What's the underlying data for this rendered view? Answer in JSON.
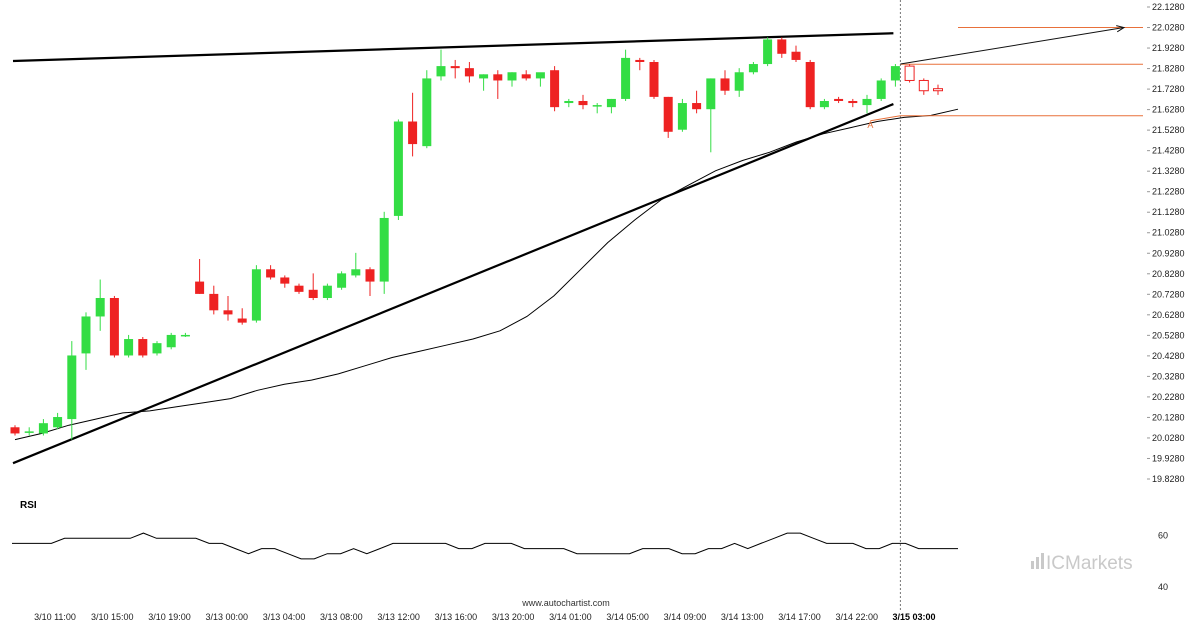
{
  "chart_data": {
    "type": "candlestick",
    "watermark": "www.autochartist.com",
    "brand": "ICMarkets",
    "colors": {
      "up": "#33dd44",
      "down": "#ee2222",
      "trendline": "#000000",
      "level": "#e8703a",
      "ma": "#000000"
    },
    "price_axis": {
      "ticks": [
        "22.1280",
        "22.0280",
        "21.9280",
        "21.8280",
        "21.7280",
        "21.6280",
        "21.5280",
        "21.4280",
        "21.3280",
        "21.2280",
        "21.1280",
        "21.0280",
        "20.9280",
        "20.8280",
        "20.7280",
        "20.6280",
        "20.5280",
        "20.4280",
        "20.3280",
        "20.2280",
        "20.1280",
        "20.0280",
        "19.9280",
        "19.8280"
      ],
      "range": [
        19.828,
        22.128
      ]
    },
    "time_axis": {
      "labels": [
        "3/10 11:00",
        "3/10 15:00",
        "3/10 19:00",
        "3/13 00:00",
        "3/13 04:00",
        "3/13 08:00",
        "3/13 12:00",
        "3/13 16:00",
        "3/13 20:00",
        "3/14 01:00",
        "3/14 05:00",
        "3/14 09:00",
        "3/14 13:00",
        "3/14 17:00",
        "3/14 22:00",
        "3/15 03:00"
      ],
      "highlighted": "3/15 03:00"
    },
    "candles": [
      {
        "o": 20.08,
        "h": 20.09,
        "l": 20.04,
        "c": 20.05
      },
      {
        "o": 20.06,
        "h": 20.08,
        "l": 20.04,
        "c": 20.06
      },
      {
        "o": 20.05,
        "h": 20.12,
        "l": 20.04,
        "c": 20.1
      },
      {
        "o": 20.08,
        "h": 20.15,
        "l": 20.07,
        "c": 20.13
      },
      {
        "o": 20.12,
        "h": 20.5,
        "l": 20.02,
        "c": 20.43
      },
      {
        "o": 20.44,
        "h": 20.64,
        "l": 20.36,
        "c": 20.62
      },
      {
        "o": 20.62,
        "h": 20.8,
        "l": 20.55,
        "c": 20.71
      },
      {
        "o": 20.71,
        "h": 20.72,
        "l": 20.42,
        "c": 20.43
      },
      {
        "o": 20.43,
        "h": 20.53,
        "l": 20.42,
        "c": 20.51
      },
      {
        "o": 20.51,
        "h": 20.52,
        "l": 20.42,
        "c": 20.43
      },
      {
        "o": 20.44,
        "h": 20.5,
        "l": 20.43,
        "c": 20.49
      },
      {
        "o": 20.47,
        "h": 20.54,
        "l": 20.46,
        "c": 20.53
      },
      {
        "o": 20.53,
        "h": 20.54,
        "l": 20.52,
        "c": 20.53
      },
      {
        "o": 20.79,
        "h": 20.9,
        "l": 20.73,
        "c": 20.73
      },
      {
        "o": 20.73,
        "h": 20.77,
        "l": 20.63,
        "c": 20.65
      },
      {
        "o": 20.65,
        "h": 20.72,
        "l": 20.6,
        "c": 20.63
      },
      {
        "o": 20.61,
        "h": 20.66,
        "l": 20.58,
        "c": 20.59
      },
      {
        "o": 20.6,
        "h": 20.87,
        "l": 20.59,
        "c": 20.85
      },
      {
        "o": 20.85,
        "h": 20.87,
        "l": 20.8,
        "c": 20.81
      },
      {
        "o": 20.81,
        "h": 20.82,
        "l": 20.76,
        "c": 20.78
      },
      {
        "o": 20.77,
        "h": 20.78,
        "l": 20.73,
        "c": 20.74
      },
      {
        "o": 20.75,
        "h": 20.83,
        "l": 20.7,
        "c": 20.71
      },
      {
        "o": 20.71,
        "h": 20.78,
        "l": 20.7,
        "c": 20.77
      },
      {
        "o": 20.76,
        "h": 20.84,
        "l": 20.75,
        "c": 20.83
      },
      {
        "o": 20.82,
        "h": 20.93,
        "l": 20.81,
        "c": 20.85
      },
      {
        "o": 20.85,
        "h": 20.86,
        "l": 20.72,
        "c": 20.79
      },
      {
        "o": 20.79,
        "h": 21.13,
        "l": 20.73,
        "c": 21.1
      },
      {
        "o": 21.11,
        "h": 21.58,
        "l": 21.09,
        "c": 21.57
      },
      {
        "o": 21.57,
        "h": 21.71,
        "l": 21.4,
        "c": 21.46
      },
      {
        "o": 21.45,
        "h": 21.82,
        "l": 21.44,
        "c": 21.78
      },
      {
        "o": 21.79,
        "h": 21.92,
        "l": 21.77,
        "c": 21.84
      },
      {
        "o": 21.84,
        "h": 21.87,
        "l": 21.78,
        "c": 21.83
      },
      {
        "o": 21.83,
        "h": 21.86,
        "l": 21.76,
        "c": 21.79
      },
      {
        "o": 21.78,
        "h": 21.8,
        "l": 21.72,
        "c": 21.8
      },
      {
        "o": 21.8,
        "h": 21.82,
        "l": 21.68,
        "c": 21.77
      },
      {
        "o": 21.77,
        "h": 21.81,
        "l": 21.74,
        "c": 21.81
      },
      {
        "o": 21.8,
        "h": 21.82,
        "l": 21.77,
        "c": 21.78
      },
      {
        "o": 21.78,
        "h": 21.8,
        "l": 21.74,
        "c": 21.81
      },
      {
        "o": 21.82,
        "h": 21.84,
        "l": 21.62,
        "c": 21.64
      },
      {
        "o": 21.66,
        "h": 21.68,
        "l": 21.64,
        "c": 21.67
      },
      {
        "o": 21.67,
        "h": 21.7,
        "l": 21.63,
        "c": 21.65
      },
      {
        "o": 21.65,
        "h": 21.66,
        "l": 21.61,
        "c": 21.65
      },
      {
        "o": 21.64,
        "h": 21.68,
        "l": 21.61,
        "c": 21.68
      },
      {
        "o": 21.68,
        "h": 21.92,
        "l": 21.67,
        "c": 21.88
      },
      {
        "o": 21.87,
        "h": 21.88,
        "l": 21.82,
        "c": 21.86
      },
      {
        "o": 21.86,
        "h": 21.87,
        "l": 21.68,
        "c": 21.69
      },
      {
        "o": 21.69,
        "h": 21.69,
        "l": 21.49,
        "c": 21.52
      },
      {
        "o": 21.53,
        "h": 21.68,
        "l": 21.52,
        "c": 21.66
      },
      {
        "o": 21.66,
        "h": 21.72,
        "l": 21.61,
        "c": 21.63
      },
      {
        "o": 21.63,
        "h": 21.78,
        "l": 21.42,
        "c": 21.78
      },
      {
        "o": 21.78,
        "h": 21.82,
        "l": 21.7,
        "c": 21.72
      },
      {
        "o": 21.72,
        "h": 21.83,
        "l": 21.69,
        "c": 21.81
      },
      {
        "o": 21.81,
        "h": 21.86,
        "l": 21.8,
        "c": 21.85
      },
      {
        "o": 21.85,
        "h": 21.98,
        "l": 21.84,
        "c": 21.97
      },
      {
        "o": 21.97,
        "h": 21.98,
        "l": 21.88,
        "c": 21.9
      },
      {
        "o": 21.91,
        "h": 21.94,
        "l": 21.86,
        "c": 21.87
      },
      {
        "o": 21.86,
        "h": 21.87,
        "l": 21.63,
        "c": 21.64
      },
      {
        "o": 21.64,
        "h": 21.68,
        "l": 21.63,
        "c": 21.67
      },
      {
        "o": 21.68,
        "h": 21.69,
        "l": 21.66,
        "c": 21.67
      },
      {
        "o": 21.67,
        "h": 21.68,
        "l": 21.64,
        "c": 21.66
      },
      {
        "o": 21.65,
        "h": 21.7,
        "l": 21.61,
        "c": 21.68
      },
      {
        "o": 21.68,
        "h": 21.78,
        "l": 21.67,
        "c": 21.77
      },
      {
        "o": 21.77,
        "h": 21.85,
        "l": 21.74,
        "c": 21.84
      }
    ],
    "forecast_candles": [
      {
        "o": 21.84,
        "h": 21.85,
        "l": 21.76,
        "c": 21.77
      },
      {
        "o": 21.77,
        "h": 21.78,
        "l": 21.7,
        "c": 21.72
      },
      {
        "o": 21.73,
        "h": 21.75,
        "l": 21.7,
        "c": 21.72
      }
    ],
    "moving_average": [
      20.02,
      20.05,
      20.09,
      20.12,
      20.15,
      20.16,
      20.18,
      20.2,
      20.22,
      20.26,
      20.29,
      20.31,
      20.34,
      20.38,
      20.42,
      20.45,
      20.48,
      20.51,
      20.55,
      20.62,
      20.72,
      20.85,
      20.98,
      21.09,
      21.19,
      21.26,
      21.33,
      21.38,
      21.42,
      21.47,
      21.51,
      21.54,
      21.57,
      21.59,
      21.6,
      21.63
    ],
    "trendlines": [
      {
        "name": "resistance",
        "x1": 0,
        "y1": 21.865,
        "x2": 62,
        "y2": 22.0
      },
      {
        "name": "support",
        "x1": 0,
        "y1": 19.905,
        "x2": 62,
        "y2": 21.655
      }
    ],
    "levels": [
      {
        "name": "target",
        "price": 22.028
      },
      {
        "name": "upper",
        "price": 21.849
      },
      {
        "name": "lower",
        "price": 21.598
      }
    ],
    "arrow": {
      "from_price": 21.85,
      "to_price": 22.028
    },
    "marker_label": "A",
    "rsi": {
      "title": "RSI",
      "ticks": [
        "60",
        "40"
      ],
      "range": [
        35,
        70
      ],
      "values": [
        57,
        57,
        57,
        57,
        59,
        59,
        59,
        59,
        59,
        59,
        61,
        59,
        59,
        59,
        59,
        57,
        57,
        55,
        53,
        55,
        55,
        53,
        51,
        51,
        53,
        53,
        55,
        53,
        55,
        57,
        57,
        57,
        57,
        57,
        55,
        55,
        57,
        57,
        57,
        55,
        55,
        55,
        55,
        53,
        53,
        53,
        53,
        53,
        55,
        55,
        55,
        53,
        53,
        55,
        55,
        57,
        55,
        57,
        59,
        61,
        61,
        59,
        57,
        57,
        57,
        55,
        55,
        57,
        57,
        55,
        55,
        55,
        55
      ]
    }
  }
}
